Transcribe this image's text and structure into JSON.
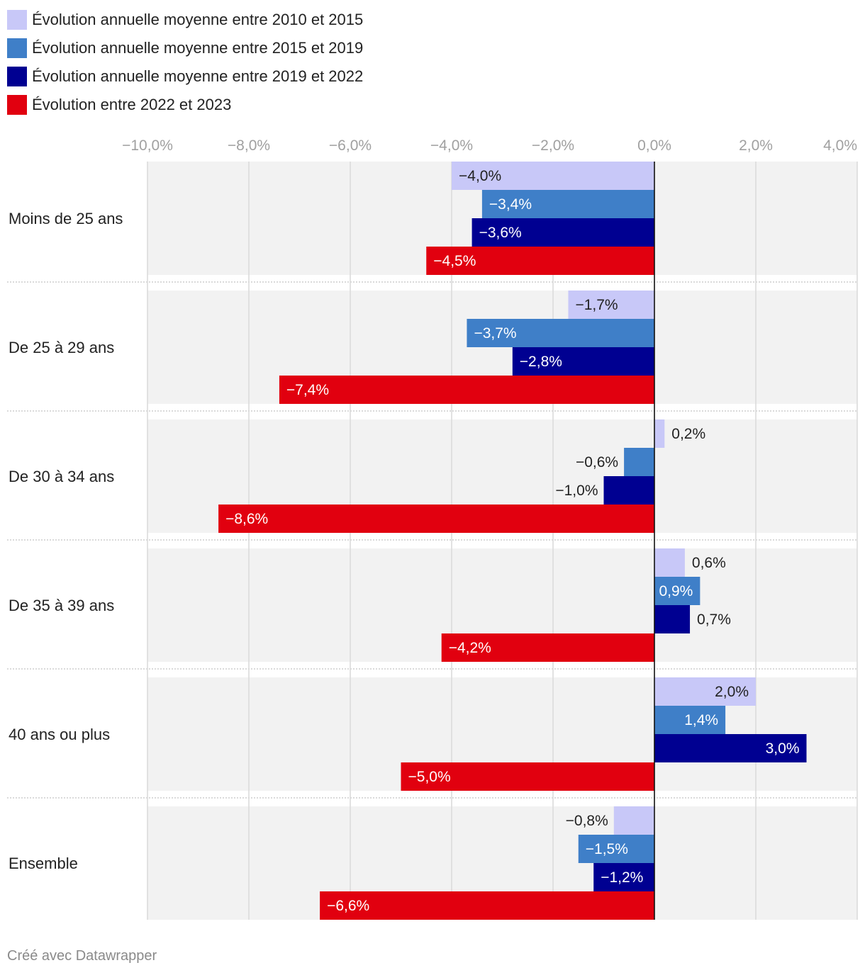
{
  "chart_data": {
    "type": "bar",
    "orientation": "horizontal",
    "categories": [
      "Moins de 25 ans",
      "De 25 à 29 ans",
      "De 30 à 34 ans",
      "De 35 à 39 ans",
      "40 ans ou plus",
      "Ensemble"
    ],
    "series": [
      {
        "name": "Évolution annuelle moyenne entre 2010 et 2015",
        "color": "#c8c8f8",
        "values": [
          -4.0,
          -1.7,
          0.2,
          0.6,
          2.0,
          -0.8
        ],
        "labels": [
          "−4,0%",
          "−1,7%",
          "0,2%",
          "0,6%",
          "2,0%",
          "−0,8%"
        ]
      },
      {
        "name": "Évolution annuelle moyenne entre 2015 et 2019",
        "color": "#3f7fc8",
        "values": [
          -3.4,
          -3.7,
          -0.6,
          0.9,
          1.4,
          -1.5
        ],
        "labels": [
          "−3,4%",
          "−3,7%",
          "−0,6%",
          "0,9%",
          "1,4%",
          "−1,5%"
        ]
      },
      {
        "name": "Évolution annuelle moyenne entre 2019 et 2022",
        "color": "#000091",
        "values": [
          -3.6,
          -2.8,
          -1.0,
          0.7,
          3.0,
          -1.2
        ],
        "labels": [
          "−3,6%",
          "−2,8%",
          "−1,0%",
          "0,7%",
          "3,0%",
          "−1,2%"
        ]
      },
      {
        "name": "Évolution entre 2022 et 2023",
        "color": "#e1000f",
        "values": [
          -4.5,
          -7.4,
          -8.6,
          -4.2,
          -5.0,
          -6.6
        ],
        "labels": [
          "−4,5%",
          "−7,4%",
          "−8,6%",
          "−4,2%",
          "−5,0%",
          "−6,6%"
        ]
      }
    ],
    "xlim": [
      -10,
      4
    ],
    "ticks": [
      -10,
      -8,
      -6,
      -4,
      -2,
      0,
      2,
      4
    ],
    "tick_labels": [
      "−10,0%",
      "−8,0%",
      "−6,0%",
      "−4,0%",
      "−2,0%",
      "0,0%",
      "2,0%",
      "4,0%"
    ],
    "grid": true,
    "legend_position": "top-left"
  },
  "footer": {
    "credit": "Créé avec Datawrapper"
  }
}
